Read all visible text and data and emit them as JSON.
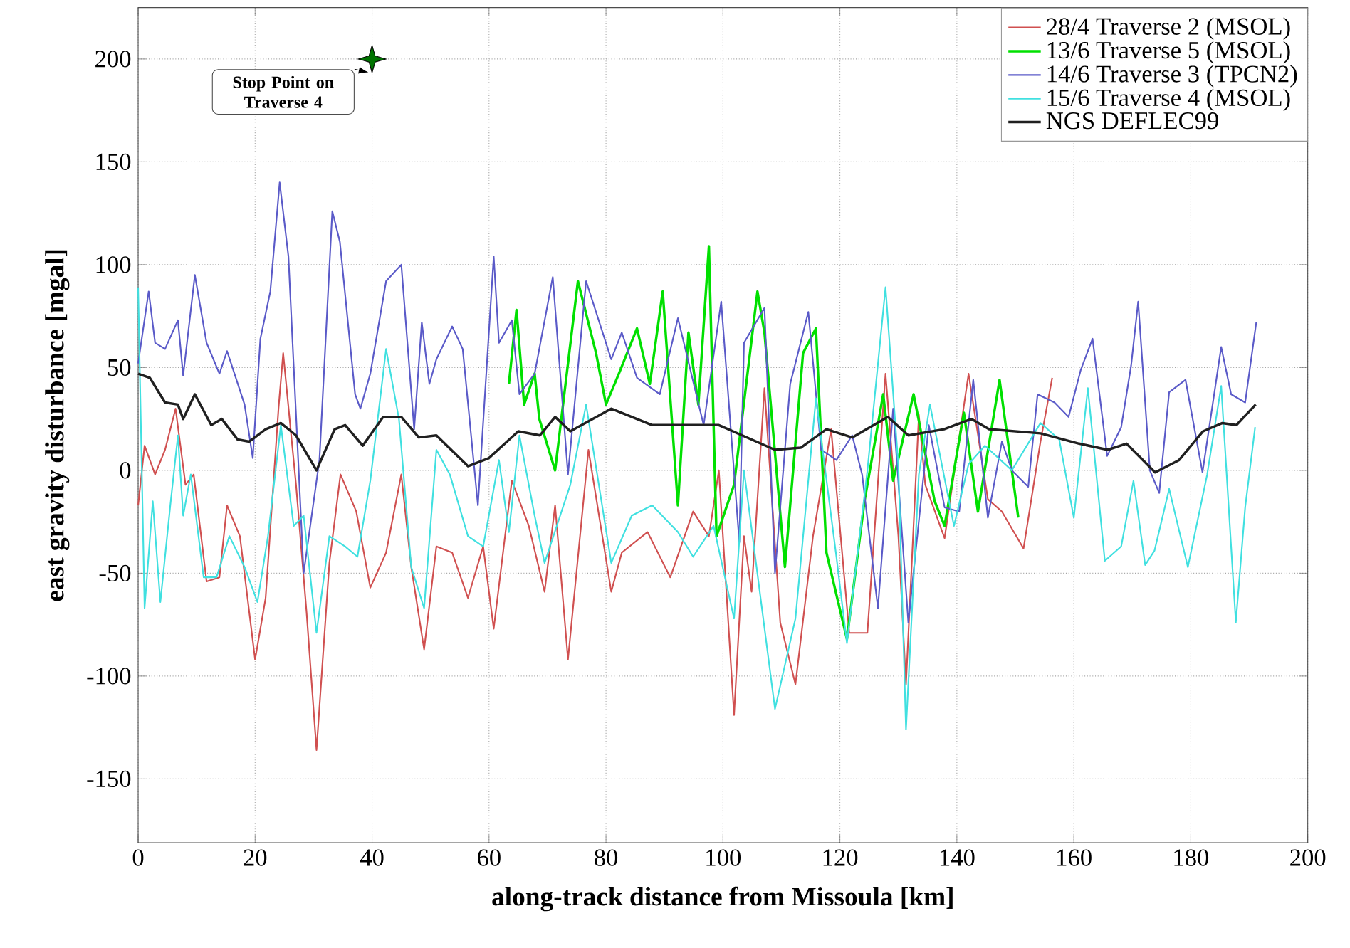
{
  "chart_data": {
    "type": "line",
    "xlabel": "along-track distance from Missoula [km]",
    "ylabel": "east gravity disturbance [mgal]",
    "xlim": [
      0,
      200
    ],
    "ylim": [
      -181,
      225
    ],
    "xticks": [
      0,
      20,
      40,
      60,
      80,
      100,
      120,
      140,
      160,
      180,
      200
    ],
    "yticks": [
      -150,
      -100,
      -50,
      0,
      50,
      100,
      150,
      200
    ],
    "grid": true,
    "legend": "top right",
    "line_style": "solid",
    "marker": "none",
    "annotations": [
      {
        "text": "Stop Point on Traverse 4",
        "x": 40,
        "y": 200
      }
    ],
    "series": [
      {
        "name": "28/4 Traverse 2 (MSOL)",
        "color": "#d05050",
        "x": [
          0,
          1.1,
          2.9,
          4.6,
          6.4,
          8.1,
          9.5,
          11.7,
          13.9,
          15.2,
          17.4,
          20,
          21.8,
          24,
          24.8,
          27,
          28.8,
          30.5,
          32.7,
          34.6,
          37.3,
          39.7,
          42.4,
          45,
          46.7,
          48.9,
          51,
          53.7,
          56.4,
          59,
          60.8,
          63.9,
          66.8,
          69.5,
          71.3,
          73.5,
          77,
          80.9,
          82.7,
          87.1,
          91,
          94.9,
          97.6,
          99.3,
          101.9,
          103.6,
          104.9,
          107.1,
          109.8,
          112.4,
          115.4,
          118.5,
          121.6,
          124.7,
          127.8,
          130,
          131.3,
          133.5,
          134.6,
          137.9,
          142,
          145.3,
          147.7,
          151.4,
          154.3,
          156.3
        ],
        "values": [
          -17,
          12,
          -2,
          10,
          30,
          -7,
          -2,
          -54,
          -52,
          -17,
          -32,
          -92,
          -62,
          30,
          57,
          -7,
          -69,
          -136,
          -45,
          -2,
          -20,
          -57,
          -40,
          -2,
          -47,
          -87,
          -37,
          -40,
          -62,
          -37,
          -77,
          -5,
          -27,
          -59,
          -17,
          -92,
          10,
          -59,
          -40,
          -30,
          -52,
          -20,
          -32,
          0,
          -119,
          -32,
          -59,
          40,
          -74,
          -104,
          -32,
          20,
          -79,
          -79,
          47,
          -32,
          -104,
          27,
          -7,
          -33,
          47,
          -14,
          -20,
          -38,
          14,
          45
        ]
      },
      {
        "name": "13/6 Traverse 5 (MSOL)",
        "color": "#00e000",
        "x": [
          63.4,
          64.7,
          66,
          67.8,
          68.6,
          71.3,
          75.2,
          78.3,
          80,
          82.2,
          85.3,
          87.5,
          89.7,
          92.3,
          94.1,
          95.8,
          97.6,
          98.9,
          101.9,
          105.9,
          107.1,
          110.6,
          113.7,
          115.9,
          117.7,
          121.2,
          124.2,
          127.4,
          129.1,
          132.6,
          136.2,
          137.9,
          141.2,
          143.6,
          147.3,
          150.5
        ],
        "values": [
          42,
          78,
          32,
          47,
          25,
          0,
          92,
          57,
          32,
          47,
          69,
          42,
          87,
          -17,
          67,
          32,
          109,
          -32,
          -7,
          87,
          67,
          -47,
          57,
          69,
          -40,
          -82,
          -15,
          37,
          -5,
          37,
          -15,
          -27,
          28,
          -20,
          44,
          -23
        ]
      },
      {
        "name": "14/6 Traverse 3 (TPCN2)",
        "color": "#5a5ac8",
        "x": [
          0,
          1.8,
          2.9,
          4.6,
          6.8,
          7.7,
          9.7,
          11.7,
          13.9,
          15.2,
          18.2,
          19.6,
          20.9,
          22.6,
          24.2,
          25.7,
          28.3,
          31,
          33.2,
          34.5,
          37.1,
          38,
          39.7,
          42.4,
          45,
          47.2,
          48.5,
          49.8,
          51,
          53.7,
          55.5,
          58.1,
          60.8,
          61.7,
          63.9,
          65.2,
          67.8,
          70.9,
          73.5,
          76.6,
          80.9,
          82.7,
          85.3,
          89.2,
          92.3,
          96.7,
          99.7,
          102.8,
          103.6,
          107.1,
          108.9,
          111.5,
          114.6,
          116.8,
          119.4,
          122.1,
          123.8,
          126.5,
          129.1,
          131.7,
          135.2,
          137.9,
          140.4,
          142.8,
          145.3,
          147.7,
          149.4,
          152.2,
          153.8,
          156.7,
          159.1,
          161.2,
          163.2,
          165.7,
          168.1,
          169.8,
          171,
          173,
          174.6,
          176.3,
          179.1,
          182,
          185.2,
          186.9,
          189.3,
          191.2
        ],
        "values": [
          52,
          87,
          62,
          59,
          73,
          46,
          95,
          62,
          47,
          58,
          32,
          6,
          64,
          87,
          140,
          104,
          -50,
          5,
          126,
          111,
          37,
          30,
          47,
          92,
          100,
          20,
          72,
          42,
          54,
          70,
          59,
          -17,
          104,
          62,
          73,
          37,
          47,
          94,
          -2,
          92,
          54,
          67,
          45,
          37,
          74,
          22,
          82,
          -35,
          62,
          79,
          -50,
          42,
          77,
          10,
          5,
          17,
          -2,
          -67,
          30,
          -74,
          22,
          -18,
          -20,
          44,
          -23,
          14,
          0,
          -8,
          37,
          33,
          26,
          49,
          64,
          7,
          21,
          51,
          82,
          0,
          -11,
          38,
          44,
          -1,
          60,
          37,
          33,
          72
        ]
      },
      {
        "name": "15/6 Traverse 4 (MSOL)",
        "color": "#40e0e0",
        "x": [
          0,
          1.1,
          2.5,
          3.8,
          5.5,
          6.8,
          7.7,
          9,
          11.2,
          13.4,
          15.6,
          18.2,
          20.4,
          22.2,
          24.4,
          26.6,
          28.3,
          30.5,
          32.7,
          35.4,
          37.5,
          39.7,
          42.4,
          44.6,
          46.7,
          48.9,
          51,
          53.3,
          56.4,
          59,
          61.7,
          63.4,
          65.2,
          67.8,
          69.5,
          73.9,
          76.6,
          80.9,
          84.4,
          87.9,
          92.3,
          94.9,
          98.4,
          101.9,
          103.6,
          108.9,
          112.4,
          115.9,
          119.4,
          121.2,
          124.7,
          127.8,
          130,
          131.3,
          133.5,
          135.4,
          139.5,
          142,
          144.8,
          149.4,
          154.3,
          157.5,
          160,
          162.4,
          165.3,
          168.1,
          170.2,
          172.2,
          173.8,
          176.3,
          179.5,
          182.8,
          185.2,
          187.7,
          189.3,
          191
        ],
        "values": [
          89,
          -67,
          -15,
          -64,
          -17,
          17,
          -22,
          -2,
          -52,
          -52,
          -32,
          -47,
          -64,
          -32,
          22,
          -27,
          -22,
          -79,
          -32,
          -37,
          -42,
          -5,
          59,
          25,
          -47,
          -67,
          10,
          -2,
          -32,
          -37,
          5,
          -30,
          17,
          -22,
          -45,
          -7,
          32,
          -45,
          -22,
          -17,
          -30,
          -42,
          -27,
          -72,
          0,
          -116,
          -72,
          35,
          -42,
          -84,
          0,
          89,
          2,
          -126,
          -2,
          32,
          -27,
          3,
          12,
          0,
          23,
          15,
          -23,
          40,
          -44,
          -37,
          -5,
          -46,
          -39,
          -9,
          -47,
          -2,
          41,
          -74,
          -18,
          21
        ]
      },
      {
        "name": "NGS DEFLEC99",
        "color": "#202020",
        "x": [
          0,
          2,
          4.6,
          6.8,
          7.7,
          9.7,
          12.5,
          14.3,
          17,
          19,
          21.8,
          24.4,
          27,
          30.5,
          33.6,
          35.4,
          38.4,
          41.9,
          45,
          48,
          51,
          56.4,
          60,
          65,
          68.7,
          71.3,
          73.9,
          80.9,
          87.9,
          99.3,
          108.9,
          113.3,
          117.7,
          122.1,
          128.2,
          131.7,
          137.8,
          142.5,
          145.5,
          154.3,
          160.9,
          165.8,
          169,
          173.9,
          178,
          182.1,
          185.4,
          187.8,
          191.1
        ],
        "values": [
          47,
          45,
          33,
          32,
          25,
          37,
          22,
          25,
          15,
          14,
          20,
          23,
          17,
          0,
          20,
          22,
          12,
          26,
          26,
          16,
          17,
          2,
          6,
          19,
          17,
          26,
          19,
          30,
          22,
          22,
          10,
          11,
          20,
          16,
          26,
          17,
          20,
          25,
          20,
          18,
          13,
          10,
          13,
          -1,
          5,
          19,
          23,
          22,
          32
        ]
      }
    ]
  }
}
